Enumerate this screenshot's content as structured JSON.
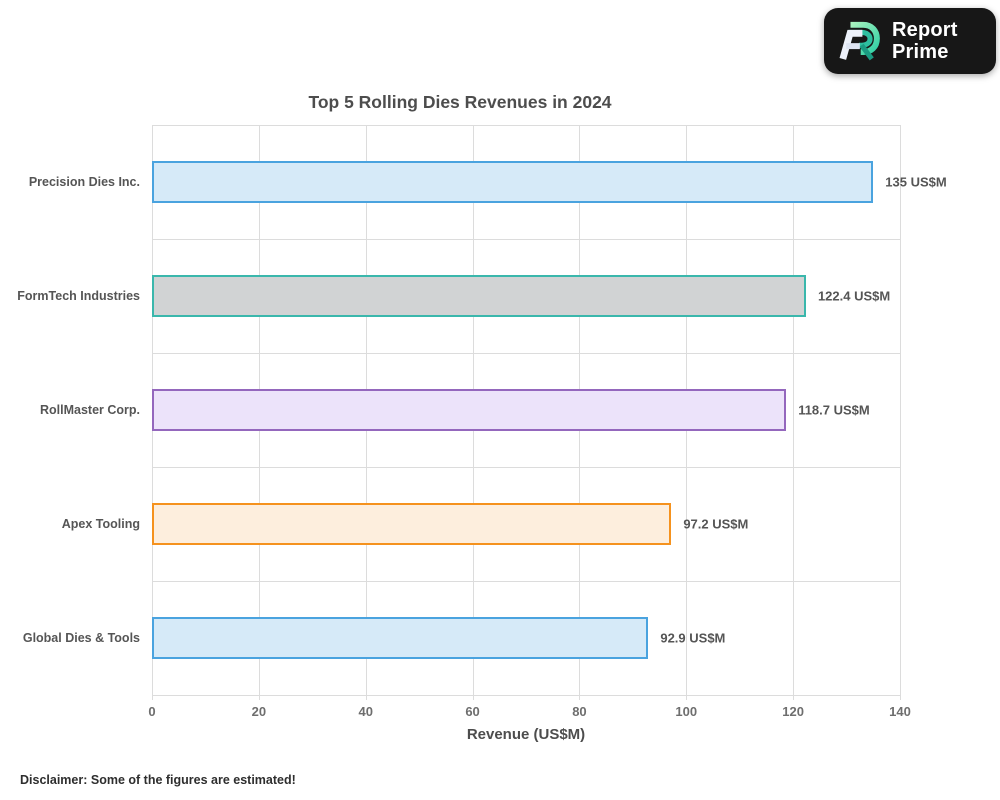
{
  "logo": {
    "line1": "Report",
    "line2": "Prime",
    "bg_color": "#171717"
  },
  "disclaimer": "Disclaimer: Some of the figures are estimated!",
  "chart_data": {
    "type": "bar",
    "orientation": "horizontal",
    "title": "Top 5 Rolling Dies Revenues in 2024",
    "xlabel": "Revenue (US$M)",
    "ylabel": "",
    "unit": "US$M",
    "xlim": [
      0,
      140
    ],
    "xticks": [
      0,
      20,
      40,
      60,
      80,
      100,
      120,
      140
    ],
    "grid": true,
    "legend": false,
    "categories": [
      "Precision Dies Inc.",
      "FormTech Industries",
      "RollMaster Corp.",
      "Apex Tooling",
      "Global Dies & Tools"
    ],
    "values": [
      135,
      122.4,
      118.7,
      97.2,
      92.9
    ],
    "value_labels": [
      "135 US$M",
      "122.4 US$M",
      "118.7 US$M",
      "97.2 US$M",
      "92.9 US$M"
    ],
    "bar_colors": [
      {
        "fill": "#d6eaf8",
        "border": "#4aa3df"
      },
      {
        "fill": "#d1d3d4",
        "border": "#3ab7ac"
      },
      {
        "fill": "#ece3fa",
        "border": "#9467bd"
      },
      {
        "fill": "#fdeedd",
        "border": "#f5921e"
      },
      {
        "fill": "#d6eaf8",
        "border": "#4aa3df"
      }
    ],
    "gridline_color": "#dcdcdc"
  }
}
